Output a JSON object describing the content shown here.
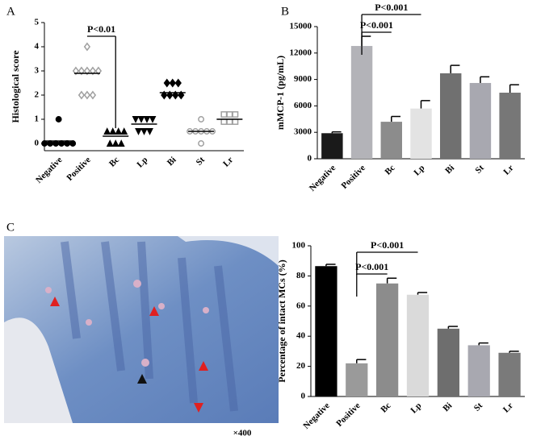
{
  "panel_labels": [
    "A",
    "B",
    "C"
  ],
  "image_caption": "×400",
  "chart_data": [
    {
      "type": "scatter",
      "ylabel": "Histological score",
      "categories": [
        "Negative",
        "Positive",
        "Bc",
        "Lp",
        "Bi",
        "St",
        "Lr"
      ],
      "values": [
        [
          1,
          0,
          0,
          0,
          0,
          0,
          0
        ],
        [
          4,
          3,
          3,
          3,
          3,
          3,
          2,
          2,
          2
        ],
        [
          0.5,
          0.5,
          0.5,
          0.5,
          0,
          0,
          0
        ],
        [
          1,
          1,
          1,
          1,
          0.5,
          0.5,
          0.5
        ],
        [
          2.5,
          2.5,
          2.5,
          2,
          2,
          2,
          2
        ],
        [
          1,
          0.5,
          0.5,
          0.5,
          0.5,
          0.5,
          0
        ],
        [
          1.2,
          1.2,
          1.2,
          0.9,
          0.9,
          0.9
        ]
      ],
      "means": [
        0.1,
        2.9,
        0.3,
        0.8,
        2.1,
        0.5,
        1
      ],
      "markers": [
        "circle",
        "diamond",
        "triangle",
        "triangle-down",
        "diamond",
        "circle",
        "square"
      ],
      "filled": [
        true,
        false,
        true,
        true,
        true,
        false,
        false
      ],
      "colors": [
        "#000000",
        "#a0a0a0",
        "#000000",
        "#000000",
        "#000000",
        "#a0a0a0",
        "#a0a0a0"
      ],
      "ylim": [
        -0.3,
        5
      ],
      "yticks": [
        0,
        1,
        2,
        3,
        4,
        5
      ],
      "annotations": [
        {
          "text": "P<0.01",
          "from": "Positive",
          "to": "Bc"
        }
      ]
    },
    {
      "type": "bar",
      "ylabel": "mMCP-1 (pg/mL)",
      "categories": [
        "Negative",
        "Positive",
        "Bc",
        "Lp",
        "Bi",
        "St",
        "Lr"
      ],
      "values": [
        2900,
        12800,
        4200,
        5700,
        9700,
        8600,
        7500
      ],
      "errors": [
        150,
        1100,
        600,
        900,
        900,
        700,
        900
      ],
      "colors": [
        "#1a1a1a",
        "#b3b3b8",
        "#8c8c8c",
        "#e3e3e3",
        "#707070",
        "#a8a8b0",
        "#777777"
      ],
      "ylim": [
        0,
        15000
      ],
      "yticks": [
        0,
        3000,
        6000,
        9000,
        12000,
        15000
      ],
      "annotations": [
        {
          "text": "P<0.001",
          "from": "Positive",
          "to": "Lp"
        },
        {
          "text": "P<0.001",
          "from": "Positive",
          "to": "Bc"
        }
      ]
    },
    {
      "type": "bar",
      "ylabel": "Percentage of intact MCs (%)",
      "categories": [
        "Negative",
        "Positive",
        "Bc",
        "Lp",
        "Bi",
        "St",
        "Lr"
      ],
      "values": [
        86.5,
        22,
        75,
        67.5,
        45,
        34,
        29
      ],
      "errors": [
        1.2,
        2.5,
        3.5,
        1.5,
        1.5,
        1.5,
        1
      ],
      "colors": [
        "#000000",
        "#9a9a9a",
        "#8c8c8c",
        "#dadada",
        "#6e6e6e",
        "#a8a8b0",
        "#7a7a7a"
      ],
      "ylim": [
        0,
        100
      ],
      "yticks": [
        0,
        20,
        40,
        60,
        80,
        100
      ],
      "annotations": [
        {
          "text": "P<0.001",
          "from": "Positive",
          "to": "Lp"
        },
        {
          "text": "P<0.001",
          "from": "Positive",
          "to": "Bc"
        }
      ]
    }
  ]
}
